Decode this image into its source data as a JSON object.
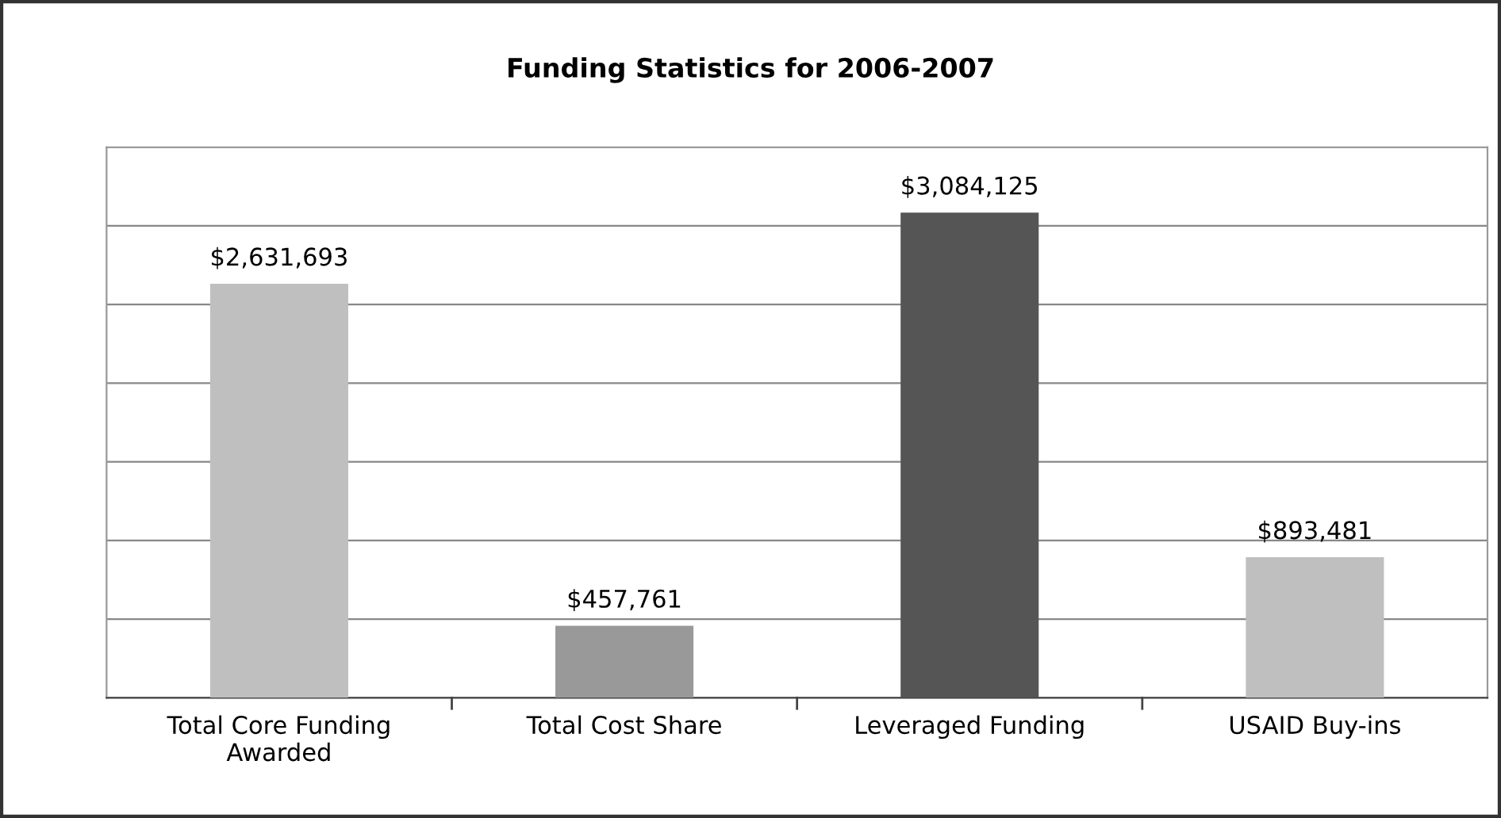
{
  "chart_data": {
    "type": "bar",
    "title": "Funding Statistics for 2006-2007",
    "categories": [
      "Total Core Funding\nAwarded",
      "Total Cost Share",
      "Leveraged Funding",
      "USAID Buy-ins"
    ],
    "values": [
      2631693,
      457761,
      3084125,
      893481
    ],
    "colors": [
      "#bfbfbf",
      "#999999",
      "#555555",
      "#bfbfbf"
    ],
    "value_labels": [
      "$2,631,693",
      "$457,761",
      "$3,084,125",
      "$893,481"
    ],
    "ylim": [
      0,
      3500000
    ],
    "yticks": [
      {
        "value": 0,
        "label": null
      },
      {
        "value": 500000,
        "label": null
      },
      {
        "value": 1000000,
        "label": null
      },
      {
        "value": 1500000,
        "label": null
      },
      {
        "value": 2000000,
        "label": null
      },
      {
        "value": 2500000,
        "label": null
      },
      {
        "value": 3000000,
        "label": null
      },
      {
        "value": 3500000,
        "label": null
      }
    ],
    "grid": "y",
    "tick_labels": "x",
    "legend": false
  }
}
